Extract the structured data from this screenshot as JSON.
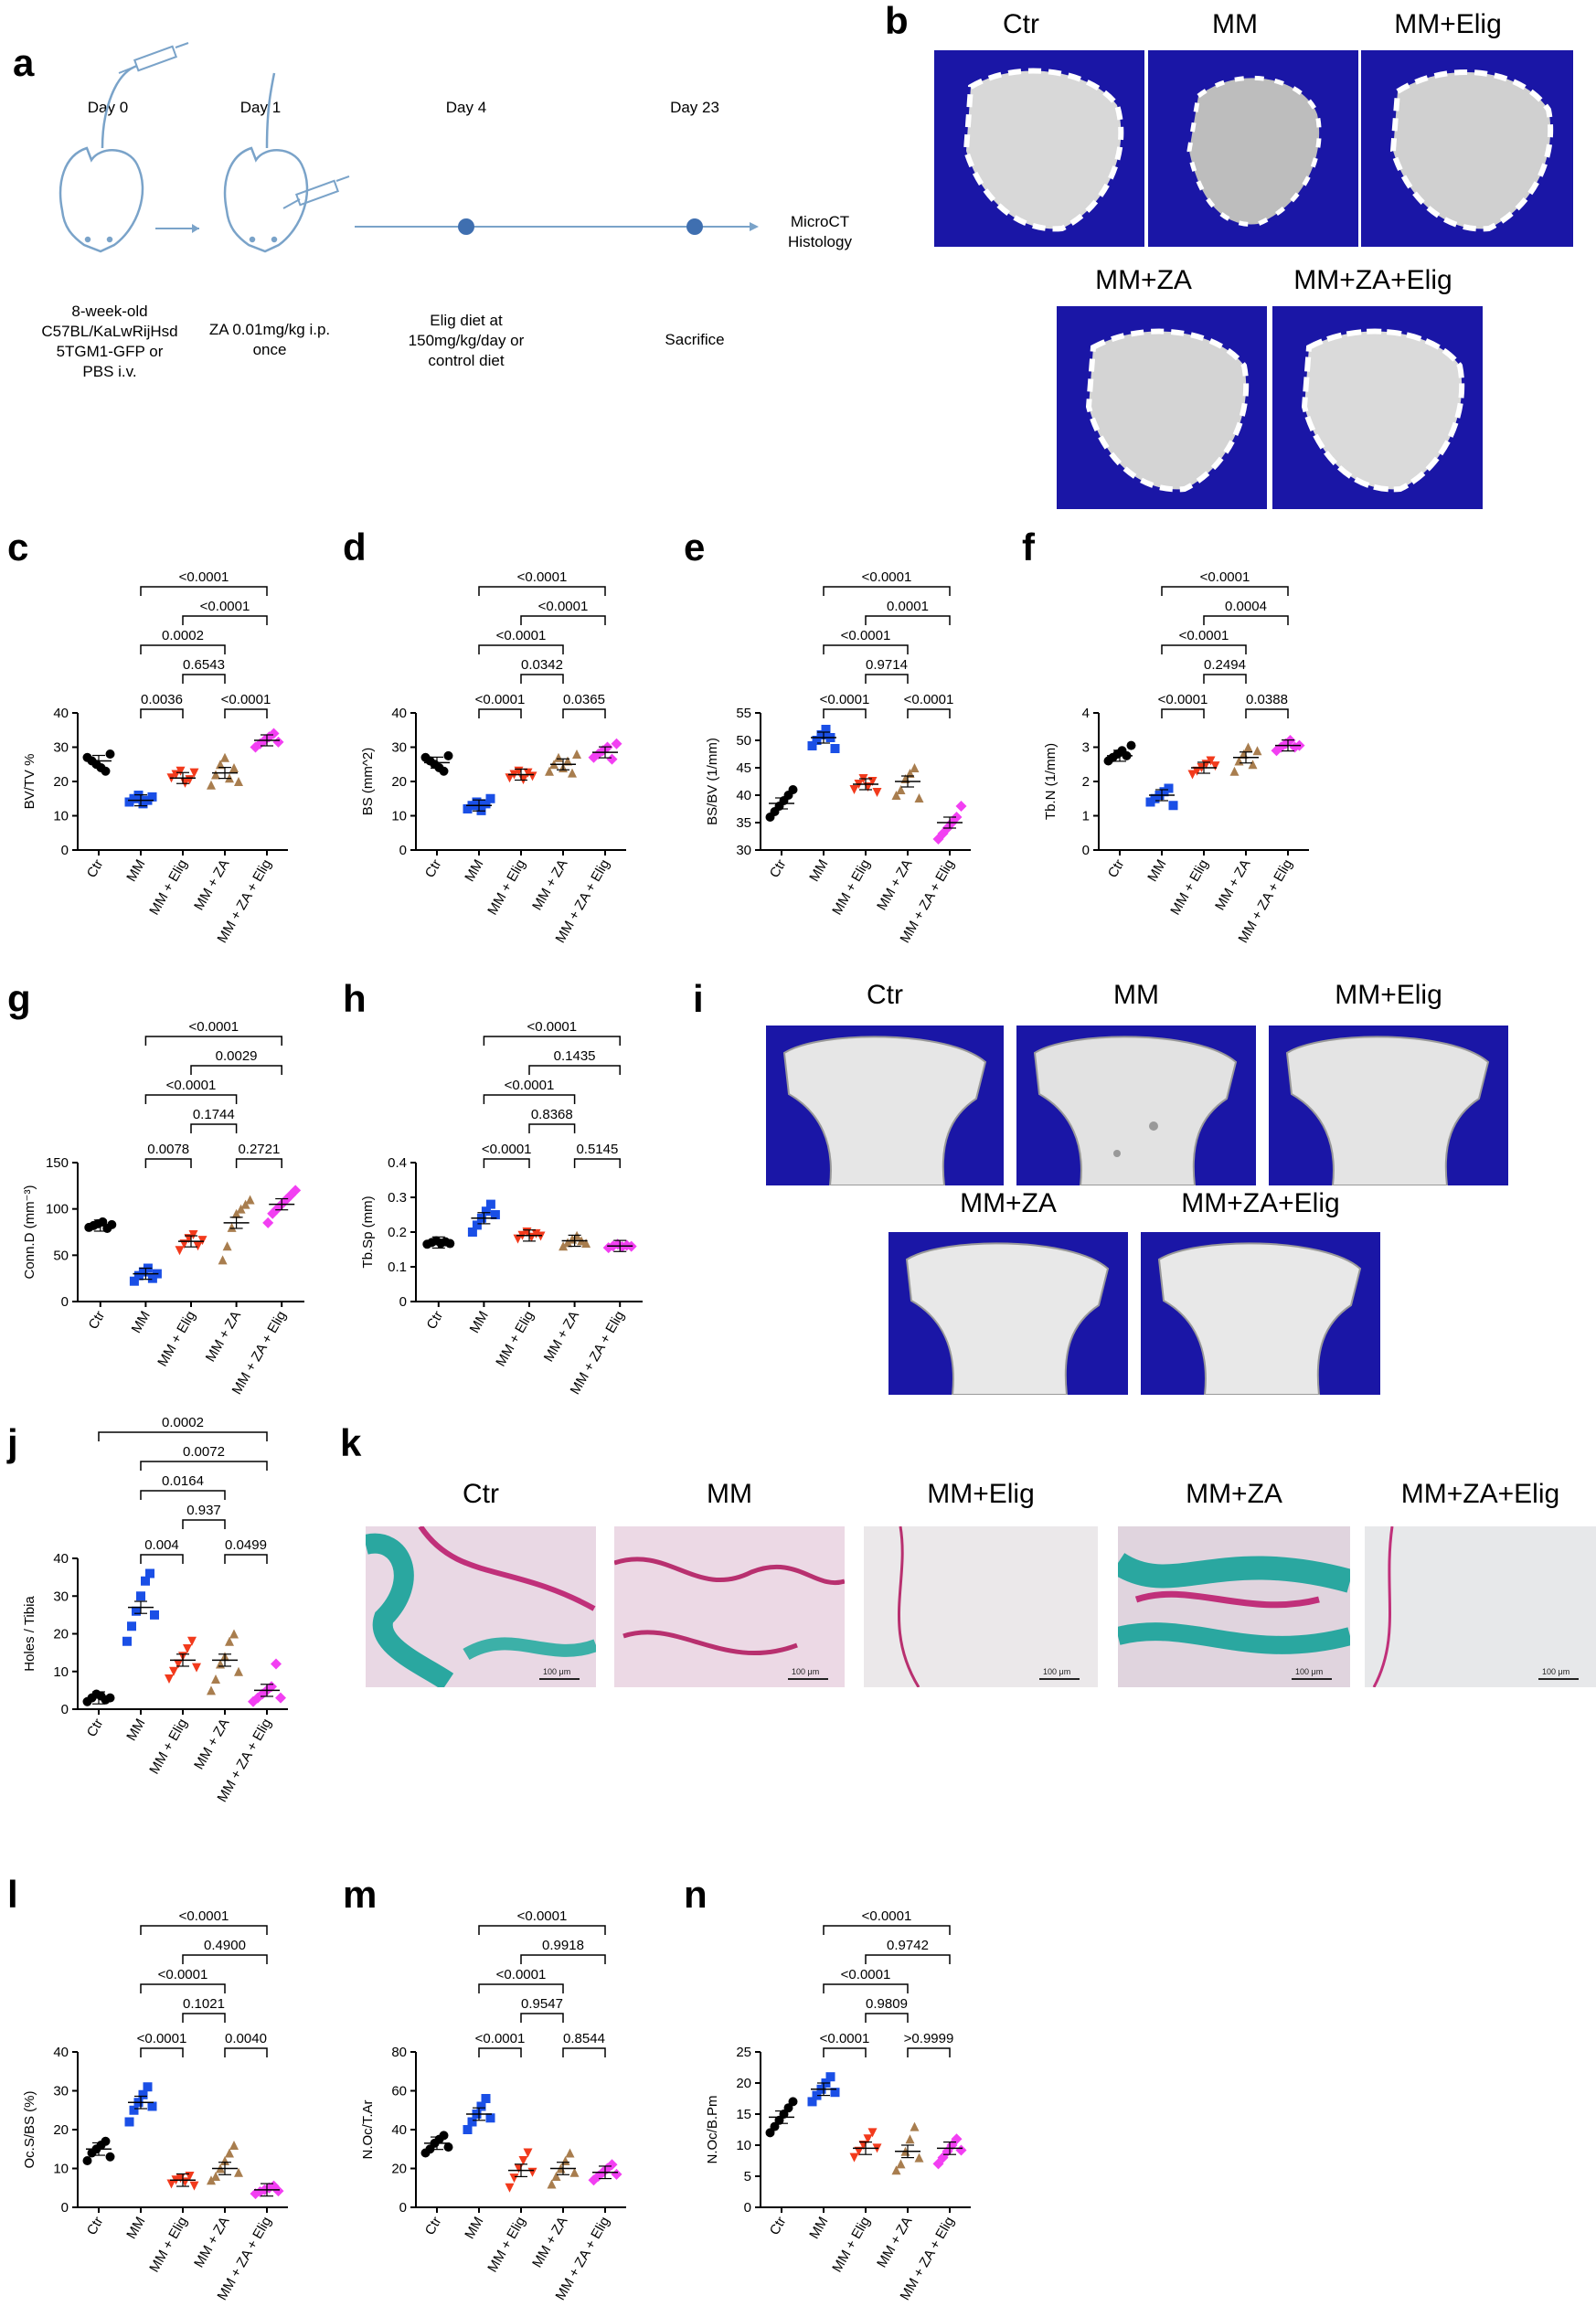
{
  "panel_letters": [
    "a",
    "b",
    "c",
    "d",
    "e",
    "f",
    "g",
    "h",
    "i",
    "j",
    "k",
    "l",
    "m",
    "n"
  ],
  "groups": [
    "Ctr",
    "MM",
    "MM + Elig",
    "MM + ZA",
    "MM + ZA + Elig"
  ],
  "colors": {
    "Ctr": "#000000",
    "MM": "#1a4fe6",
    "MM + Elig": "#f23a1c",
    "MM + ZA": "#a87d4e",
    "MM + ZA + Elig": "#f23ff2"
  },
  "panel_a": {
    "timepoints": [
      {
        "day": "Day 0",
        "desc": [
          "8-week-old",
          "C57BL/KaLwRijHsd",
          "5TGM1-GFP or",
          "PBS i.v."
        ]
      },
      {
        "day": "Day 1",
        "desc": [
          "ZA 0.01mg/kg i.p.",
          "once"
        ]
      },
      {
        "day": "Day 4",
        "desc": [
          "Elig diet at",
          "150mg/kg/day or",
          "control diet"
        ]
      },
      {
        "day": "Day 23",
        "desc": [
          "Sacrifice"
        ]
      }
    ],
    "endpoint": [
      "MicroCT",
      "Histology"
    ]
  },
  "panel_b": {
    "labels": [
      "Ctr",
      "MM",
      "MM+Elig",
      "MM+ZA",
      "MM+ZA+Elig"
    ]
  },
  "panel_i": {
    "labels": [
      "Ctr",
      "MM",
      "MM+Elig",
      "MM+ZA",
      "MM+ZA+Elig"
    ]
  },
  "panel_k": {
    "labels": [
      "Ctr",
      "MM",
      "MM+Elig",
      "MM+ZA",
      "MM+ZA+Elig"
    ],
    "scale_text": "100 μm"
  },
  "chart_data": [
    {
      "id": "c",
      "type": "scatter",
      "ylabel": "BV/TV %",
      "ylim": [
        0,
        40
      ],
      "ticks": [
        0,
        10,
        20,
        30,
        40
      ],
      "means": [
        26,
        14.5,
        21,
        22.5,
        32
      ],
      "points": [
        [
          27,
          26,
          25,
          24,
          23,
          28
        ],
        [
          14,
          15,
          16,
          13.5,
          14.5,
          15.5
        ],
        [
          21,
          22,
          23,
          19.5,
          20.5,
          22.5
        ],
        [
          19,
          22,
          25,
          27,
          21,
          24,
          20
        ],
        [
          30,
          31,
          32,
          33,
          34,
          31.5
        ]
      ],
      "comparisons": [
        {
          "a": 1,
          "b": 2,
          "p": "0.0036"
        },
        {
          "a": 3,
          "b": 4,
          "p": "<0.0001"
        },
        {
          "a": 2,
          "b": 3,
          "p": "0.6543"
        },
        {
          "a": 1,
          "b": 3,
          "p": "0.0002"
        },
        {
          "a": 2,
          "b": 4,
          "p": "<0.0001"
        },
        {
          "a": 1,
          "b": 4,
          "p": "<0.0001"
        }
      ]
    },
    {
      "id": "d",
      "type": "scatter",
      "ylabel": "BS (mm^2)",
      "ylim": [
        0,
        40
      ],
      "ticks": [
        0,
        10,
        20,
        30,
        40
      ],
      "means": [
        25.5,
        13,
        22,
        25,
        28.5
      ],
      "points": [
        [
          27,
          26,
          25,
          24,
          23,
          27.5
        ],
        [
          12,
          13,
          14,
          11.5,
          13.5,
          15
        ],
        [
          21,
          22,
          23,
          20.5,
          22.5,
          21.5
        ],
        [
          23,
          25,
          27,
          24,
          26,
          22.5,
          28
        ],
        [
          27,
          28,
          29,
          30,
          26.5,
          31
        ]
      ],
      "comparisons": [
        {
          "a": 1,
          "b": 2,
          "p": "<0.0001"
        },
        {
          "a": 3,
          "b": 4,
          "p": "0.0365"
        },
        {
          "a": 2,
          "b": 3,
          "p": "0.0342"
        },
        {
          "a": 1,
          "b": 3,
          "p": "<0.0001"
        },
        {
          "a": 2,
          "b": 4,
          "p": "<0.0001"
        },
        {
          "a": 1,
          "b": 4,
          "p": "<0.0001"
        }
      ]
    },
    {
      "id": "e",
      "type": "scatter",
      "ylabel": "BS/BV (1/mm)",
      "ylim": [
        30,
        55
      ],
      "ticks": [
        30,
        35,
        40,
        45,
        50,
        55
      ],
      "means": [
        38.5,
        50.5,
        42,
        42.5,
        35
      ],
      "points": [
        [
          36,
          37,
          38,
          39,
          40,
          41
        ],
        [
          49,
          50,
          51,
          52,
          50.5,
          48.5
        ],
        [
          41,
          42,
          43,
          41.5,
          42.5,
          40.5
        ],
        [
          40,
          41,
          43,
          44,
          45,
          39.5
        ],
        [
          32,
          33,
          34,
          35,
          36,
          38
        ]
      ],
      "comparisons": [
        {
          "a": 1,
          "b": 2,
          "p": "<0.0001"
        },
        {
          "a": 3,
          "b": 4,
          "p": "<0.0001"
        },
        {
          "a": 2,
          "b": 3,
          "p": "0.9714"
        },
        {
          "a": 1,
          "b": 3,
          "p": "<0.0001"
        },
        {
          "a": 2,
          "b": 4,
          "p": "0.0001"
        },
        {
          "a": 1,
          "b": 4,
          "p": "<0.0001"
        }
      ]
    },
    {
      "id": "f",
      "type": "scatter",
      "ylabel": "Tb.N (1/mm)",
      "ylim": [
        0,
        4
      ],
      "ticks": [
        0,
        1,
        2,
        3,
        4
      ],
      "means": [
        2.75,
        1.6,
        2.4,
        2.7,
        3.05
      ],
      "points": [
        [
          2.6,
          2.7,
          2.8,
          2.9,
          2.75,
          3.05
        ],
        [
          1.4,
          1.5,
          1.6,
          1.7,
          1.8,
          1.3
        ],
        [
          2.2,
          2.3,
          2.4,
          2.5,
          2.6,
          2.45
        ],
        [
          2.3,
          2.6,
          2.8,
          3.0,
          2.5,
          2.9
        ],
        [
          2.9,
          3.0,
          3.1,
          3.2,
          3.0,
          3.05
        ]
      ],
      "comparisons": [
        {
          "a": 1,
          "b": 2,
          "p": "<0.0001"
        },
        {
          "a": 3,
          "b": 4,
          "p": "0.0388"
        },
        {
          "a": 2,
          "b": 3,
          "p": "0.2494"
        },
        {
          "a": 1,
          "b": 3,
          "p": "<0.0001"
        },
        {
          "a": 2,
          "b": 4,
          "p": "0.0004"
        },
        {
          "a": 1,
          "b": 4,
          "p": "<0.0001"
        }
      ]
    },
    {
      "id": "g",
      "type": "scatter",
      "ylabel": "Conn.D (mm⁻³)",
      "ylim": [
        0,
        150
      ],
      "ticks": [
        0,
        50,
        100,
        150
      ],
      "means": [
        82,
        30,
        65,
        85,
        105
      ],
      "points": [
        [
          80,
          82,
          84,
          86,
          79,
          83
        ],
        [
          22,
          28,
          32,
          36,
          25,
          30
        ],
        [
          55,
          62,
          68,
          72,
          60,
          66
        ],
        [
          45,
          60,
          80,
          95,
          100,
          105,
          110
        ],
        [
          85,
          95,
          100,
          105,
          110,
          115,
          120
        ]
      ],
      "comparisons": [
        {
          "a": 1,
          "b": 2,
          "p": "0.0078"
        },
        {
          "a": 3,
          "b": 4,
          "p": "0.2721"
        },
        {
          "a": 2,
          "b": 3,
          "p": "0.1744"
        },
        {
          "a": 1,
          "b": 3,
          "p": "<0.0001"
        },
        {
          "a": 2,
          "b": 4,
          "p": "0.0029"
        },
        {
          "a": 1,
          "b": 4,
          "p": "<0.0001"
        }
      ]
    },
    {
      "id": "h",
      "type": "scatter",
      "ylabel": "Tb.Sp (mm)",
      "ylim": [
        0,
        0.4
      ],
      "ticks": [
        0.0,
        0.1,
        0.2,
        0.3,
        0.4
      ],
      "means": [
        0.17,
        0.24,
        0.19,
        0.175,
        0.16
      ],
      "points": [
        [
          0.165,
          0.17,
          0.175,
          0.168,
          0.172,
          0.167
        ],
        [
          0.2,
          0.22,
          0.24,
          0.26,
          0.28,
          0.25
        ],
        [
          0.18,
          0.19,
          0.2,
          0.185,
          0.195,
          0.188
        ],
        [
          0.16,
          0.17,
          0.18,
          0.19,
          0.175,
          0.168
        ],
        [
          0.155,
          0.16,
          0.165,
          0.158,
          0.162,
          0.159
        ]
      ],
      "comparisons": [
        {
          "a": 1,
          "b": 2,
          "p": "<0.0001"
        },
        {
          "a": 3,
          "b": 4,
          "p": "0.5145"
        },
        {
          "a": 2,
          "b": 3,
          "p": "0.8368"
        },
        {
          "a": 1,
          "b": 3,
          "p": "<0.0001"
        },
        {
          "a": 2,
          "b": 4,
          "p": "0.1435"
        },
        {
          "a": 1,
          "b": 4,
          "p": "<0.0001"
        }
      ]
    },
    {
      "id": "j",
      "type": "scatter",
      "ylabel": "Holes / Tibia",
      "ylim": [
        0,
        40
      ],
      "ticks": [
        0,
        10,
        20,
        30,
        40
      ],
      "means": [
        3,
        27,
        13,
        13,
        5
      ],
      "points": [
        [
          2,
          3,
          4,
          3.5,
          2.5,
          3
        ],
        [
          18,
          22,
          26,
          30,
          34,
          36,
          25
        ],
        [
          8,
          10,
          12,
          14,
          16,
          18,
          11
        ],
        [
          5,
          8,
          12,
          14,
          18,
          20,
          10
        ],
        [
          2,
          3,
          4,
          5,
          6,
          12,
          3
        ]
      ],
      "comparisons": [
        {
          "a": 1,
          "b": 2,
          "p": "0.004"
        },
        {
          "a": 3,
          "b": 4,
          "p": "0.0499"
        },
        {
          "a": 2,
          "b": 3,
          "p": "0.937"
        },
        {
          "a": 1,
          "b": 3,
          "p": "0.0164"
        },
        {
          "a": 1,
          "b": 4,
          "p": "0.0072"
        },
        {
          "a": 0,
          "b": 4,
          "p": "0.0002"
        }
      ]
    },
    {
      "id": "l",
      "type": "scatter",
      "ylabel": "Oc.S/BS (%)",
      "ylim": [
        0,
        40
      ],
      "ticks": [
        0,
        10,
        20,
        30,
        40
      ],
      "means": [
        15,
        27,
        7,
        10,
        4.5
      ],
      "points": [
        [
          12,
          14,
          15,
          16,
          17,
          13
        ],
        [
          22,
          25,
          27,
          29,
          31,
          26
        ],
        [
          6,
          7,
          7.5,
          6.5,
          8,
          5.5
        ],
        [
          7,
          8,
          10,
          12,
          14,
          16,
          9
        ],
        [
          3.5,
          4,
          4.5,
          5,
          5.5,
          4.2
        ]
      ],
      "comparisons": [
        {
          "a": 1,
          "b": 2,
          "p": "<0.0001"
        },
        {
          "a": 3,
          "b": 4,
          "p": "0.0040"
        },
        {
          "a": 2,
          "b": 3,
          "p": "0.1021"
        },
        {
          "a": 1,
          "b": 3,
          "p": "<0.0001"
        },
        {
          "a": 2,
          "b": 4,
          "p": "0.4900"
        },
        {
          "a": 1,
          "b": 4,
          "p": "<0.0001"
        }
      ]
    },
    {
      "id": "m",
      "type": "scatter",
      "ylabel": "N.Oc/T.Ar",
      "ylim": [
        0,
        80
      ],
      "ticks": [
        0,
        20,
        40,
        60,
        80
      ],
      "means": [
        33,
        48,
        19,
        20,
        18
      ],
      "points": [
        [
          28,
          30,
          33,
          35,
          37,
          31
        ],
        [
          40,
          44,
          48,
          52,
          56,
          46
        ],
        [
          10,
          15,
          20,
          24,
          28,
          18
        ],
        [
          12,
          16,
          20,
          24,
          28,
          18
        ],
        [
          14,
          16,
          18,
          20,
          22,
          17
        ]
      ],
      "comparisons": [
        {
          "a": 1,
          "b": 2,
          "p": "<0.0001"
        },
        {
          "a": 3,
          "b": 4,
          "p": "0.8544"
        },
        {
          "a": 2,
          "b": 3,
          "p": "0.9547"
        },
        {
          "a": 1,
          "b": 3,
          "p": "<0.0001"
        },
        {
          "a": 2,
          "b": 4,
          "p": "0.9918"
        },
        {
          "a": 1,
          "b": 4,
          "p": "<0.0001"
        }
      ]
    },
    {
      "id": "n",
      "type": "scatter",
      "ylabel": "N.Oc/B.Pm",
      "ylim": [
        0,
        25
      ],
      "ticks": [
        0,
        5,
        10,
        15,
        20,
        25
      ],
      "means": [
        14.5,
        19,
        9.5,
        9,
        9.5
      ],
      "points": [
        [
          12,
          13,
          14,
          15,
          16,
          17
        ],
        [
          17,
          18,
          19,
          20,
          21,
          18.5
        ],
        [
          8,
          9,
          10,
          11,
          12,
          9.5
        ],
        [
          6,
          7,
          9,
          11,
          13,
          8
        ],
        [
          7,
          8,
          9,
          10,
          11,
          9.2
        ]
      ],
      "comparisons": [
        {
          "a": 1,
          "b": 2,
          "p": "<0.0001"
        },
        {
          "a": 3,
          "b": 4,
          "p": ">0.9999"
        },
        {
          "a": 2,
          "b": 3,
          "p": "0.9809"
        },
        {
          "a": 1,
          "b": 3,
          "p": "<0.0001"
        },
        {
          "a": 2,
          "b": 4,
          "p": "0.9742"
        },
        {
          "a": 1,
          "b": 4,
          "p": "<0.0001"
        }
      ]
    }
  ]
}
